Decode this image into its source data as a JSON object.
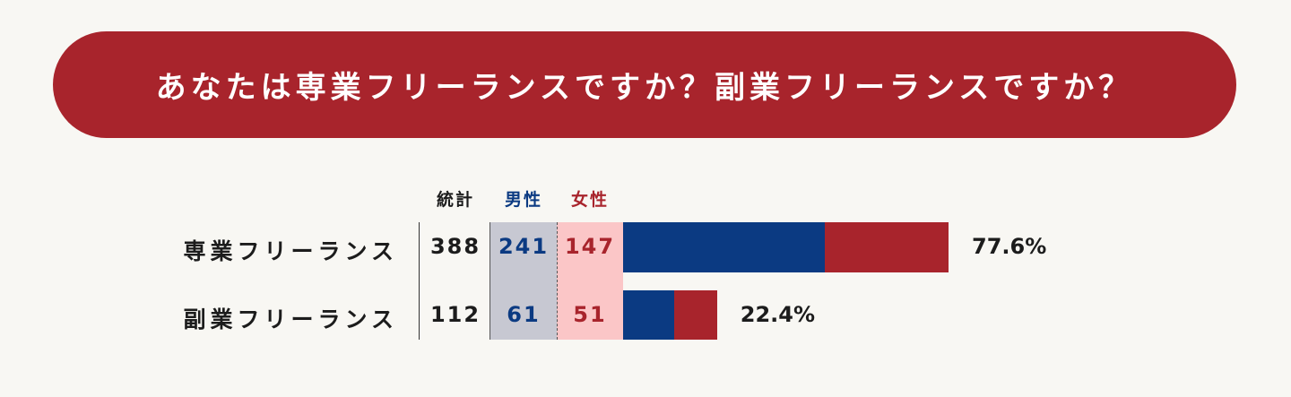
{
  "title": "あなたは専業フリーランスですか？副業フリーランスですか？",
  "colors": {
    "banner": "#a8242c",
    "male": "#0b3a82",
    "female": "#a8242c",
    "male_column_bg": "#c7c8d2",
    "female_column_bg": "#fbc6c7"
  },
  "headers": {
    "total": "統計",
    "male": "男性",
    "female": "女性"
  },
  "chart_data": {
    "type": "bar",
    "orientation": "horizontal",
    "stacked": true,
    "categories": [
      "専業フリーランス",
      "副業フリーランス"
    ],
    "totals": [
      388,
      112
    ],
    "series": [
      {
        "name": "男性",
        "values": [
          241,
          61
        ]
      },
      {
        "name": "女性",
        "values": [
          147,
          51
        ]
      }
    ],
    "percent_labels": [
      "77.6%",
      "22.4%"
    ],
    "grid": false
  }
}
